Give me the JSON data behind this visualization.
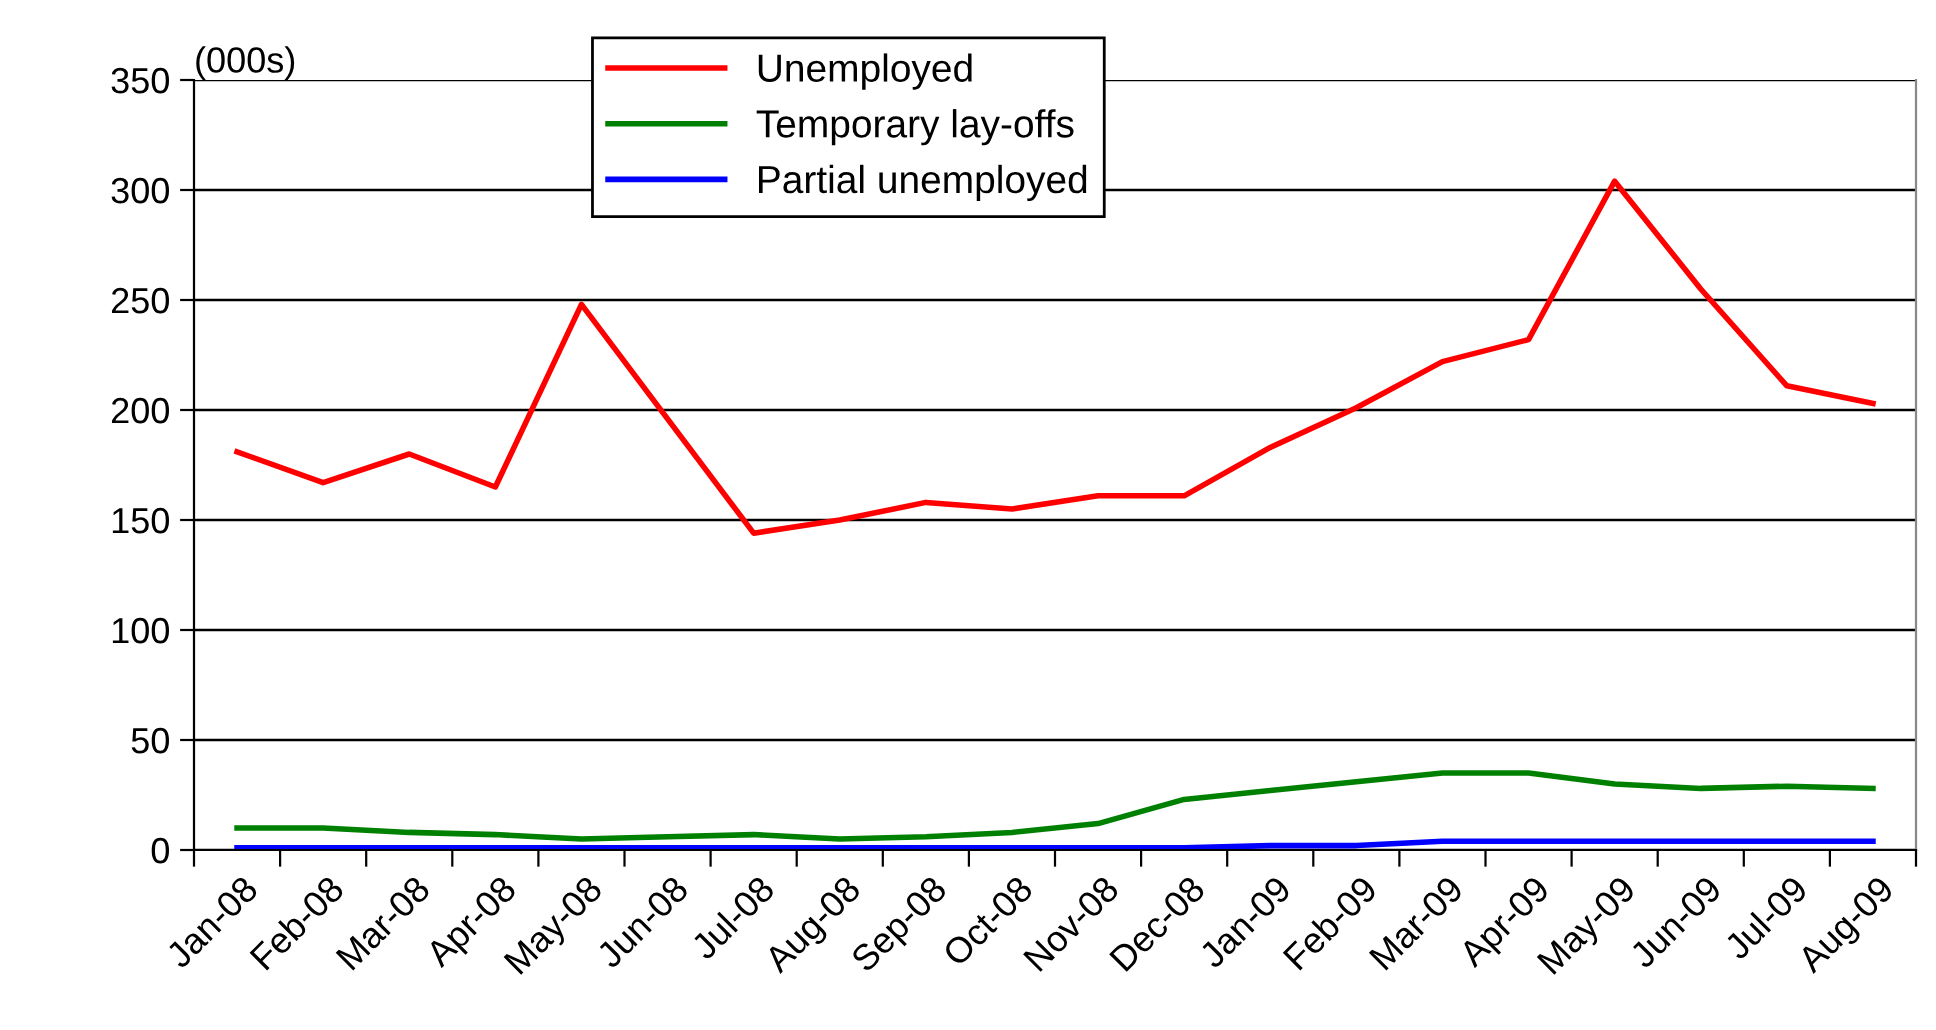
{
  "chart_data": {
    "type": "line",
    "annotations": [
      "(000s)"
    ],
    "categories": [
      "Jan-08",
      "Feb-08",
      "Mar-08",
      "Apr-08",
      "May-08",
      "Jun-08",
      "Jul-08",
      "Aug-08",
      "Sep-08",
      "Oct-08",
      "Nov-08",
      "Dec-08",
      "Jan-09",
      "Feb-09",
      "Mar-09",
      "Apr-09",
      "May-09",
      "Jun-09",
      "Jul-09",
      "Aug-09"
    ],
    "series": [
      {
        "name": "Unemployed",
        "color": "#ff0000",
        "values": [
          181,
          167,
          180,
          165,
          248,
          196,
          144,
          150,
          158,
          155,
          161,
          161,
          183,
          201,
          222,
          232,
          304,
          255,
          211,
          203
        ]
      },
      {
        "name": "Temporary lay-offs",
        "color": "#008000",
        "values": [
          10,
          10,
          8,
          7,
          5,
          6,
          7,
          5,
          6,
          8,
          12,
          23,
          27,
          31,
          35,
          35,
          30,
          28,
          29,
          28
        ]
      },
      {
        "name": "Partial unemployed",
        "color": "#0000ff",
        "values": [
          1,
          1,
          1,
          1,
          1,
          1,
          1,
          1,
          1,
          1,
          1,
          1,
          2,
          2,
          4,
          4,
          4,
          4,
          4,
          4
        ]
      }
    ],
    "ylim": [
      0,
      350
    ],
    "yticks": [
      0,
      50,
      100,
      150,
      200,
      250,
      300,
      350
    ],
    "grid": "y",
    "legend": "top",
    "marker": "none",
    "line_style": "solid"
  }
}
